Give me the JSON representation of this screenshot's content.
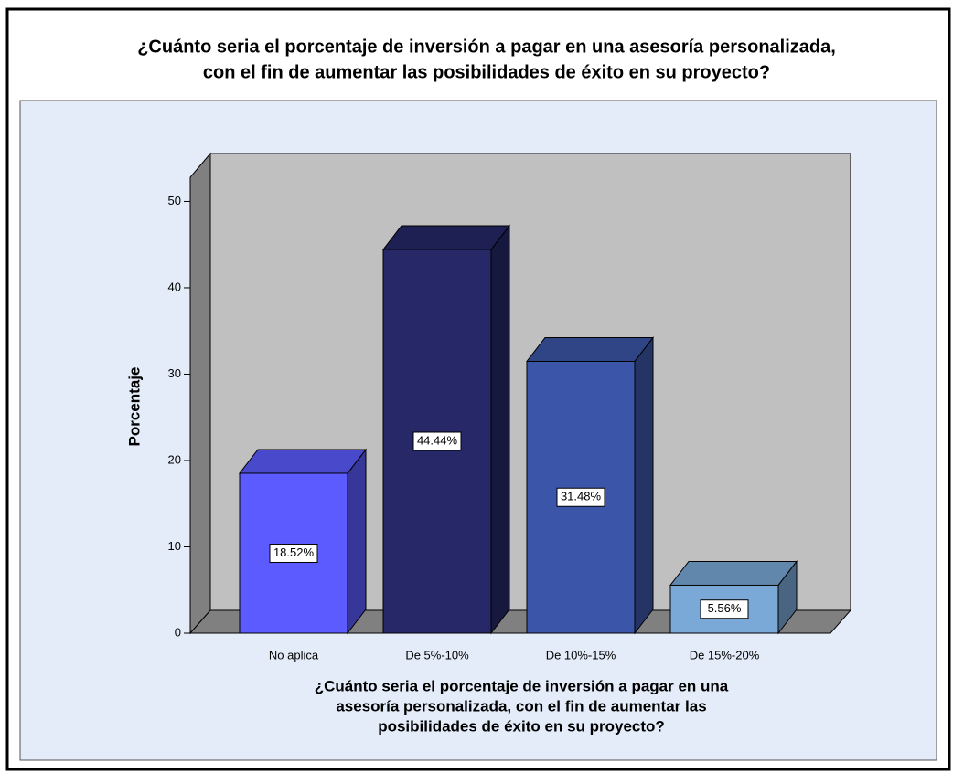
{
  "chart_data": {
    "type": "bar3d",
    "title": [
      "¿Cuánto seria el porcentaje de inversión a pagar en una asesoría personalizada,",
      "con el fin de aumentar las posibilidades de éxito en su proyecto?"
    ],
    "x_label": [
      "¿Cuánto seria el porcentaje de inversión a pagar en una",
      "asesoría personalizada, con el fin de aumentar las",
      "posibilidades de éxito en su proyecto?"
    ],
    "y_label": "Porcentaje",
    "categories": [
      "No aplica",
      "De 5%-10%",
      "De 10%-15%",
      "De 15%-20%"
    ],
    "values": [
      18.52,
      44.44,
      31.48,
      5.56
    ],
    "value_labels": [
      "18.52%",
      "44.44%",
      "31.48%",
      "5.56%"
    ],
    "colors": [
      "#5b5bff",
      "#262868",
      "#3b56a8",
      "#7aa9d8"
    ],
    "ylim": [
      0,
      52.8
    ],
    "yticks": [
      0,
      10,
      20,
      30,
      40,
      50
    ]
  }
}
